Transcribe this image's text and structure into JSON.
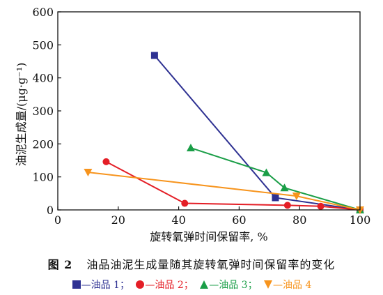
{
  "chart_data": {
    "type": "line",
    "xlabel": "旋转氧弹时间保留率, %",
    "ylabel": "油泥生成量/(μg·g⁻¹)",
    "xlim": [
      0,
      100
    ],
    "ylim": [
      0,
      600
    ],
    "xticks": [
      0,
      20,
      40,
      60,
      80,
      100
    ],
    "yticks": [
      0,
      100,
      200,
      300,
      400,
      500,
      600
    ],
    "series": [
      {
        "name": "油品 1",
        "color": "#2e3192",
        "marker": "square",
        "points": [
          [
            32,
            468
          ],
          [
            72,
            37
          ],
          [
            100,
            0
          ]
        ]
      },
      {
        "name": "油品 2",
        "color": "#e41e26",
        "marker": "circle",
        "points": [
          [
            16,
            146
          ],
          [
            42,
            20
          ],
          [
            76,
            14
          ],
          [
            87,
            11
          ],
          [
            100,
            0
          ]
        ]
      },
      {
        "name": "油品 3",
        "color": "#1a9e47",
        "marker": "triangle-up",
        "points": [
          [
            44,
            188
          ],
          [
            69,
            113
          ],
          [
            75,
            67
          ],
          [
            100,
            0
          ]
        ]
      },
      {
        "name": "油品 4",
        "color": "#f7941d",
        "marker": "triangle-down",
        "points": [
          [
            10,
            114
          ],
          [
            79,
            42
          ],
          [
            100,
            0
          ]
        ]
      }
    ]
  },
  "caption": {
    "figure_number": "图 2",
    "text": "油品油泥生成量随其旋转氧弹时间保留率的变化"
  },
  "legend": {
    "items": [
      {
        "label": "—油品 1",
        "sep": "；"
      },
      {
        "label": "—油品 2",
        "sep": "；"
      },
      {
        "label": "—油品 3",
        "sep": "；"
      },
      {
        "label": "—油品 4",
        "sep": ""
      }
    ]
  }
}
